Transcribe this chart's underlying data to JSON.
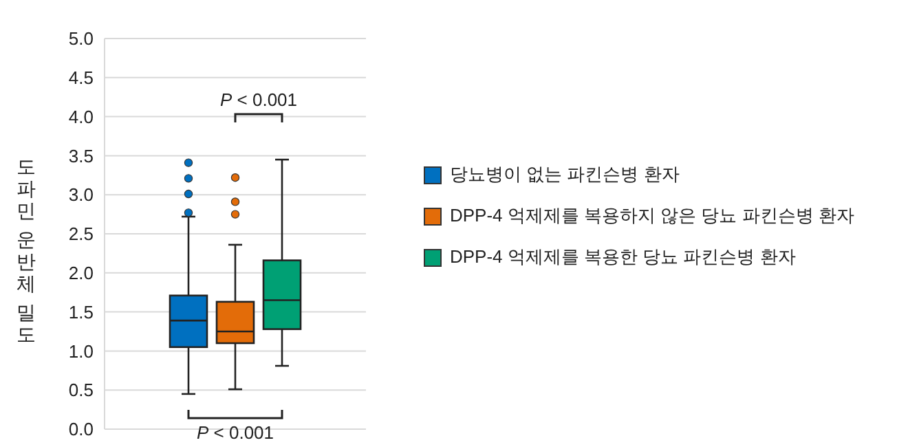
{
  "chart_data": {
    "type": "box",
    "ylabel": "도파민 운반체 밀도",
    "categories": [
      null
    ],
    "series": [
      {
        "name": "당뇨병이 없는 파킨슨병 환자",
        "color": "#0070c0",
        "boxes": [
          {
            "low": 0.45,
            "q1": 1.05,
            "median": 1.39,
            "q3": 1.71,
            "high": 2.72,
            "outliers": [
              2.77,
              3.01,
              3.21,
              3.41
            ]
          }
        ]
      },
      {
        "name": "DPP-4 억제제를 복용하지 않은 당뇨 파킨슨병 환자",
        "color": "#e36c09",
        "boxes": [
          {
            "low": 0.51,
            "q1": 1.1,
            "median": 1.25,
            "q3": 1.63,
            "high": 2.36,
            "outliers": [
              2.75,
              2.91,
              3.22
            ]
          }
        ]
      },
      {
        "name": "DPP-4 억제제를 복용한 당뇨 파킨슨병 환자",
        "color": "#00a074",
        "boxes": [
          {
            "low": 0.81,
            "q1": 1.28,
            "median": 1.65,
            "q3": 2.16,
            "high": 3.45
          }
        ]
      }
    ],
    "ylim": [
      0,
      5
    ],
    "yticks": [
      {
        "value": 0,
        "label": "0.0"
      },
      {
        "value": 0.5,
        "label": "0.5"
      },
      {
        "value": 1,
        "label": "1.0"
      },
      {
        "value": 1.5,
        "label": "1.5"
      },
      {
        "value": 2,
        "label": "2.0"
      },
      {
        "value": 2.5,
        "label": "2.5"
      },
      {
        "value": 3,
        "label": "3.0"
      },
      {
        "value": 3.5,
        "label": "3.5"
      },
      {
        "value": 4,
        "label": "4.0"
      },
      {
        "value": 4.5,
        "label": "4.5"
      },
      {
        "value": 5,
        "label": "5.0"
      }
    ],
    "grid": "y",
    "legend": "right",
    "annotations": [
      "P < 0.001",
      "P < 0.001"
    ]
  }
}
